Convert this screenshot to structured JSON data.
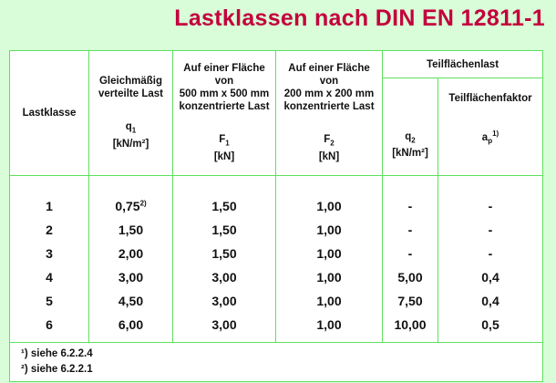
{
  "title": "Lastklassen nach DIN EN 12811-1",
  "colors": {
    "title": "#c4003c",
    "border": "#5ee05e",
    "background": "#d8fdd8"
  },
  "header": {
    "lastklasse": "Lastklasse",
    "q1": {
      "desc": "Gleichmäßig verteilte Last",
      "sym": "q",
      "sub": "1",
      "unit": "[kN/m²]"
    },
    "f1": {
      "line1": "Auf einer Fläche",
      "line2": "von",
      "line3": "500 mm x 500 mm",
      "line4": "konzentrierte Last",
      "sym": "F",
      "sub": "1",
      "unit": "[kN]"
    },
    "f2": {
      "line1": "Auf einer Fläche",
      "line2": "von",
      "line3": "200 mm x 200 mm",
      "line4": "konzentrierte Last",
      "sym": "F",
      "sub": "2",
      "unit": "[kN]"
    },
    "teil": "Teilflächenlast",
    "q2": {
      "sym": "q",
      "sub": "2",
      "unit": "[kN/m²]"
    },
    "ap": {
      "desc": "Teilflächenfaktor",
      "sym": "a",
      "sub": "p",
      "sup": "1)"
    }
  },
  "rows": [
    {
      "k": "1",
      "q1": "0,75",
      "q1_sup": "2)",
      "f1": "1,50",
      "f2": "1,00",
      "q2": "-",
      "ap": "-"
    },
    {
      "k": "2",
      "q1": "1,50",
      "f1": "1,50",
      "f2": "1,00",
      "q2": "-",
      "ap": "-"
    },
    {
      "k": "3",
      "q1": "2,00",
      "f1": "1,50",
      "f2": "1,00",
      "q2": "-",
      "ap": "-"
    },
    {
      "k": "4",
      "q1": "3,00",
      "f1": "3,00",
      "f2": "1,00",
      "q2": "5,00",
      "ap": "0,4"
    },
    {
      "k": "5",
      "q1": "4,50",
      "f1": "3,00",
      "f2": "1,00",
      "q2": "7,50",
      "ap": "0,4"
    },
    {
      "k": "6",
      "q1": "6,00",
      "f1": "3,00",
      "f2": "1,00",
      "q2": "10,00",
      "ap": "0,5"
    }
  ],
  "footnotes": [
    "¹) siehe 6.2.2.4",
    "²) siehe 6.2.2.1"
  ]
}
